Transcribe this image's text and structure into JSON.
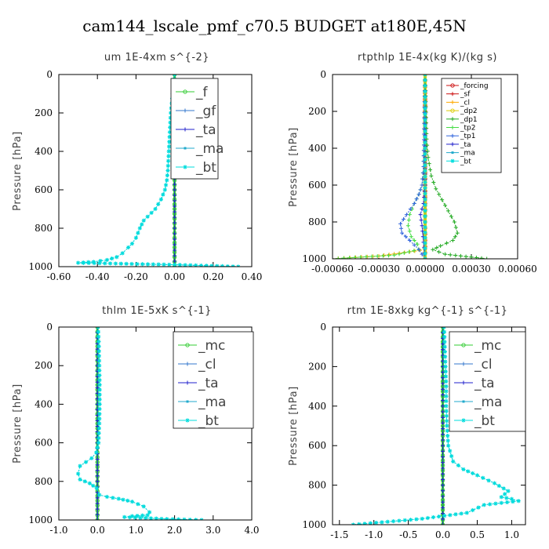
{
  "suptitle": "cam144_lscale_pmf_c70.5  BUDGET at180E,45N",
  "chart_data": [
    {
      "type": "line",
      "title": "um  1E-4xm s^{-2}",
      "ylabel": "Pressure [hPa]",
      "xlim": [
        -0.6,
        0.4
      ],
      "ylim": [
        1000,
        0
      ],
      "xticks": [
        "-0.60",
        "-0.40",
        "-0.20",
        "0.00",
        "0.20",
        "0.40"
      ],
      "xtick_values": [
        -0.6,
        -0.4,
        -0.2,
        0.0,
        0.2,
        0.4
      ],
      "yticks": [
        "0",
        "200",
        "400",
        "600",
        "800",
        "1000"
      ],
      "ytick_values": [
        0,
        200,
        400,
        600,
        800,
        1000
      ],
      "legend_style": "big",
      "series": [
        {
          "name": "_f",
          "color": "#33cc33",
          "marker": "o",
          "x": [
            0,
            0,
            0,
            0,
            0,
            0,
            0,
            0,
            0,
            0,
            0
          ],
          "y": [
            0,
            100,
            200,
            300,
            400,
            500,
            600,
            700,
            800,
            900,
            1000
          ]
        },
        {
          "name": "_gf",
          "color": "#3377cc",
          "marker": "+",
          "x": [
            0,
            0,
            0,
            0,
            0,
            0
          ],
          "y": [
            0,
            200,
            400,
            600,
            800,
            1000
          ]
        },
        {
          "name": "_ta",
          "color": "#2222cc",
          "marker": "+",
          "x": [
            0,
            0,
            0,
            0,
            0,
            0
          ],
          "y": [
            0,
            200,
            400,
            600,
            800,
            1000
          ]
        },
        {
          "name": "_ma",
          "color": "#22aacc",
          "marker": "-",
          "x": [
            0,
            -0.01,
            -0.02,
            -0.025,
            -0.03,
            -0.035,
            -0.04,
            -0.05,
            -0.07,
            -0.1,
            -0.12,
            -0.14,
            -0.16,
            -0.18,
            -0.2,
            -0.22,
            -0.24,
            -0.27,
            -0.3,
            -0.35,
            -0.42,
            -0.5,
            0.0,
            0.33
          ],
          "y": [
            0,
            100,
            200,
            300,
            400,
            500,
            550,
            600,
            650,
            700,
            720,
            740,
            760,
            800,
            850,
            880,
            900,
            930,
            950,
            965,
            975,
            980,
            990,
            1000
          ]
        },
        {
          "name": "_bt",
          "color": "#00dddd",
          "marker": "*",
          "x": [
            0,
            -0.01,
            -0.02,
            -0.025,
            -0.03,
            -0.035,
            -0.04,
            -0.05,
            -0.07,
            -0.1,
            -0.12,
            -0.14,
            -0.16,
            -0.18,
            -0.2,
            -0.22,
            -0.24,
            -0.27,
            -0.3,
            -0.35,
            -0.42,
            -0.5,
            0.0,
            0.33
          ],
          "y": [
            0,
            100,
            200,
            300,
            400,
            500,
            550,
            600,
            650,
            700,
            720,
            740,
            760,
            800,
            850,
            880,
            900,
            930,
            950,
            965,
            975,
            980,
            990,
            1000
          ]
        }
      ]
    },
    {
      "type": "line",
      "title": "rtpthlp  1E-4x(kg K)/(kg s)",
      "ylabel": "Pressure [hPa]",
      "xlim": [
        -0.0006,
        0.0006
      ],
      "ylim": [
        1000,
        0
      ],
      "xticks": [
        "-0.00060",
        "-0.00030",
        "0.00000",
        "0.00030",
        "0.00060"
      ],
      "xtick_values": [
        -0.0006,
        -0.0003,
        0.0,
        0.0003,
        0.0006
      ],
      "yticks": [
        "0",
        "200",
        "400",
        "600",
        "800",
        "1000"
      ],
      "ytick_values": [
        0,
        200,
        400,
        600,
        800,
        1000
      ],
      "legend_style": "small",
      "series": [
        {
          "name": "_forcing",
          "color": "#cc1111",
          "marker": "o",
          "x": [
            0,
            0,
            0,
            0,
            0,
            0,
            0,
            0,
            0,
            0,
            0
          ],
          "y": [
            0,
            100,
            200,
            300,
            400,
            500,
            600,
            700,
            800,
            900,
            1000
          ]
        },
        {
          "name": "_sf",
          "color": "#cc1111",
          "marker": "+",
          "x": [
            0,
            0,
            0,
            0,
            0,
            0
          ],
          "y": [
            0,
            200,
            400,
            600,
            800,
            1000
          ]
        },
        {
          "name": "_cl",
          "color": "#ffaa00",
          "marker": "+",
          "x": [
            0,
            0,
            0,
            0,
            -0.0003,
            -0.0006
          ],
          "y": [
            0,
            400,
            800,
            950,
            985,
            1000
          ]
        },
        {
          "name": "_dp2",
          "color": "#ddcc00",
          "marker": "o",
          "x": [
            0,
            0,
            0,
            0
          ],
          "y": [
            0,
            400,
            800,
            1000
          ]
        },
        {
          "name": "_dp1",
          "color": "#22aa22",
          "marker": "+",
          "x": [
            0,
            1e-05,
            2e-05,
            4e-05,
            7e-05,
            0.00011,
            0.00015,
            0.00019,
            0.00021,
            0.00018,
            0.0001,
            5e-05,
            0.00013,
            0.0004
          ],
          "y": [
            0,
            350,
            450,
            550,
            620,
            680,
            740,
            800,
            860,
            900,
            930,
            950,
            975,
            1000
          ]
        },
        {
          "name": "_tp2",
          "color": "#44dd44",
          "marker": "+",
          "x": [
            0,
            -1e-05,
            -2e-05,
            -4e-05,
            -7e-05,
            -0.0001,
            -0.00011,
            -9e-05,
            -5e-05,
            -4e-05,
            -0.0002,
            -0.0006
          ],
          "y": [
            0,
            500,
            600,
            650,
            700,
            760,
            820,
            880,
            920,
            950,
            980,
            1000
          ]
        },
        {
          "name": "_tp1",
          "color": "#3366dd",
          "marker": "+",
          "x": [
            0,
            -1e-05,
            -2e-05,
            -4e-05,
            -7e-05,
            -0.00012,
            -0.00016,
            -0.00015,
            -0.0001,
            -4e-05,
            0
          ],
          "y": [
            0,
            500,
            600,
            650,
            700,
            760,
            810,
            860,
            900,
            950,
            1000
          ]
        },
        {
          "name": "_ta",
          "color": "#2222cc",
          "marker": "+",
          "x": [
            0,
            0,
            -1e-05,
            -3e-05,
            -2e-05,
            0
          ],
          "y": [
            0,
            600,
            700,
            760,
            820,
            1000
          ]
        },
        {
          "name": "_ma",
          "color": "#22aacc",
          "marker": "-",
          "x": [
            0,
            0,
            0,
            0
          ],
          "y": [
            0,
            400,
            800,
            1000
          ]
        },
        {
          "name": "_bt",
          "color": "#00dddd",
          "marker": "*",
          "x": [
            0,
            0,
            0,
            0
          ],
          "y": [
            0,
            400,
            800,
            1000
          ]
        }
      ]
    },
    {
      "type": "line",
      "title": "thlm  1E-5xK s^{-1}",
      "ylabel": "Pressure [hPa]",
      "xlim": [
        -1.0,
        4.0
      ],
      "ylim": [
        1000,
        0
      ],
      "xticks": [
        "-1.0",
        "0.0",
        "1.0",
        "2.0",
        "3.0",
        "4.0"
      ],
      "xtick_values": [
        -1.0,
        0.0,
        1.0,
        2.0,
        3.0,
        4.0
      ],
      "yticks": [
        "0",
        "200",
        "400",
        "600",
        "800",
        "1000"
      ],
      "ytick_values": [
        0,
        200,
        400,
        600,
        800,
        1000
      ],
      "legend_style": "big",
      "series": [
        {
          "name": "_mc",
          "color": "#33cc33",
          "marker": "o",
          "x": [
            0,
            0,
            0,
            0,
            0,
            0,
            0,
            0,
            0,
            0,
            0
          ],
          "y": [
            0,
            100,
            200,
            300,
            400,
            500,
            600,
            700,
            800,
            900,
            1000
          ]
        },
        {
          "name": "_cl",
          "color": "#3377cc",
          "marker": "+",
          "x": [
            0,
            0,
            0,
            0,
            0,
            0
          ],
          "y": [
            0,
            200,
            400,
            600,
            800,
            1000
          ]
        },
        {
          "name": "_ta",
          "color": "#2222cc",
          "marker": "+",
          "x": [
            0,
            0,
            0,
            0,
            0,
            0
          ],
          "y": [
            0,
            200,
            400,
            600,
            800,
            1000
          ]
        },
        {
          "name": "_ma",
          "color": "#22aacc",
          "marker": "-",
          "x": [
            0.02,
            0.04,
            0.05,
            0.06,
            0.06,
            0.05,
            0.03,
            -0.03,
            -0.15,
            -0.3,
            -0.45,
            -0.5,
            -0.45,
            -0.2,
            -0.02,
            0.05,
            0.25,
            0.55,
            0.9,
            1.2,
            1.35,
            1.3,
            0.9,
            0.7,
            1.8,
            2.7
          ],
          "y": [
            0,
            100,
            200,
            300,
            400,
            500,
            600,
            650,
            680,
            700,
            720,
            760,
            790,
            810,
            835,
            870,
            880,
            890,
            905,
            930,
            960,
            975,
            980,
            985,
            995,
            1000
          ]
        },
        {
          "name": "_bt",
          "color": "#00dddd",
          "marker": "*",
          "x": [
            0.02,
            0.04,
            0.05,
            0.06,
            0.06,
            0.05,
            0.03,
            -0.03,
            -0.15,
            -0.3,
            -0.45,
            -0.5,
            -0.45,
            -0.2,
            -0.02,
            0.05,
            0.25,
            0.55,
            0.9,
            1.2,
            1.35,
            1.3,
            0.9,
            0.7,
            1.8,
            2.7
          ],
          "y": [
            0,
            100,
            200,
            300,
            400,
            500,
            600,
            650,
            680,
            700,
            720,
            760,
            790,
            810,
            835,
            870,
            880,
            890,
            905,
            930,
            960,
            975,
            980,
            985,
            995,
            1000
          ]
        }
      ]
    },
    {
      "type": "line",
      "title": "rtm  1E-8xkg kg^{-1} s^{-1}",
      "ylabel": "Pressure [hPa]",
      "xlim": [
        -1.6,
        1.2
      ],
      "ylim": [
        1000,
        0
      ],
      "xticks": [
        "-1.5",
        "-1.0",
        "-0.5",
        "0.0",
        "0.5",
        "1.0"
      ],
      "xtick_values": [
        -1.5,
        -1.0,
        -0.5,
        0.0,
        0.5,
        1.0
      ],
      "yticks": [
        "0",
        "200",
        "400",
        "600",
        "800",
        "1000"
      ],
      "ytick_values": [
        0,
        200,
        400,
        600,
        800,
        1000
      ],
      "legend_style": "big",
      "series": [
        {
          "name": "_mc",
          "color": "#33cc33",
          "marker": "o",
          "x": [
            0,
            0,
            0,
            0,
            0,
            0,
            0,
            0,
            0,
            0,
            0
          ],
          "y": [
            0,
            100,
            200,
            300,
            400,
            500,
            600,
            700,
            800,
            900,
            1000
          ]
        },
        {
          "name": "_cl",
          "color": "#3377cc",
          "marker": "+",
          "x": [
            0,
            0,
            0,
            0,
            0,
            0
          ],
          "y": [
            0,
            200,
            400,
            600,
            800,
            1000
          ]
        },
        {
          "name": "_ta",
          "color": "#2222cc",
          "marker": "+",
          "x": [
            0,
            0,
            0,
            0,
            0,
            0
          ],
          "y": [
            0,
            200,
            400,
            600,
            800,
            1000
          ]
        },
        {
          "name": "_ma",
          "color": "#22aacc",
          "marker": "-",
          "x": [
            0.02,
            0.03,
            0.04,
            0.05,
            0.05,
            0.06,
            0.08,
            0.15,
            0.3,
            0.5,
            0.75,
            0.95,
            0.85,
            1.0,
            1.1,
            0.6,
            0.35,
            -0.3,
            -0.8,
            -1.3
          ],
          "y": [
            0,
            100,
            200,
            300,
            400,
            500,
            600,
            680,
            720,
            750,
            790,
            830,
            860,
            870,
            880,
            900,
            940,
            970,
            985,
            1000
          ]
        },
        {
          "name": "_bt",
          "color": "#00dddd",
          "marker": "*",
          "x": [
            0.02,
            0.03,
            0.04,
            0.05,
            0.05,
            0.06,
            0.08,
            0.15,
            0.3,
            0.5,
            0.75,
            0.95,
            0.85,
            1.0,
            1.1,
            0.6,
            0.35,
            -0.3,
            -0.8,
            -1.3
          ],
          "y": [
            0,
            100,
            200,
            300,
            400,
            500,
            600,
            680,
            720,
            750,
            790,
            830,
            860,
            870,
            880,
            900,
            940,
            970,
            985,
            1000
          ]
        }
      ]
    }
  ]
}
